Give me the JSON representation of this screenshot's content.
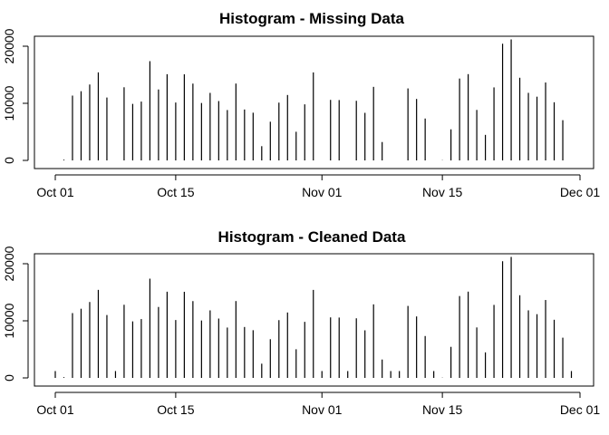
{
  "chart_data": [
    {
      "type": "bar",
      "title": "Histogram - Missing Data",
      "xlabel": "",
      "ylabel": "",
      "x_ticks": [
        "Oct 01",
        "Oct 15",
        "Nov 01",
        "Nov 15",
        "Dec 01"
      ],
      "y_ticks": [
        "0",
        "10000",
        "20000"
      ],
      "ylim": [
        0,
        21500
      ],
      "x": [
        "2012-10-02",
        "2012-10-03",
        "2012-10-04",
        "2012-10-05",
        "2012-10-06",
        "2012-10-07",
        "2012-10-09",
        "2012-10-10",
        "2012-10-11",
        "2012-10-12",
        "2012-10-13",
        "2012-10-14",
        "2012-10-15",
        "2012-10-16",
        "2012-10-17",
        "2012-10-18",
        "2012-10-19",
        "2012-10-20",
        "2012-10-21",
        "2012-10-22",
        "2012-10-23",
        "2012-10-24",
        "2012-10-25",
        "2012-10-26",
        "2012-10-27",
        "2012-10-28",
        "2012-10-29",
        "2012-10-30",
        "2012-10-31",
        "2012-11-02",
        "2012-11-03",
        "2012-11-05",
        "2012-11-06",
        "2012-11-07",
        "2012-11-08",
        "2012-11-11",
        "2012-11-12",
        "2012-11-13",
        "2012-11-15",
        "2012-11-16",
        "2012-11-17",
        "2012-11-18",
        "2012-11-19",
        "2012-11-20",
        "2012-11-21",
        "2012-11-22",
        "2012-11-23",
        "2012-11-24",
        "2012-11-25",
        "2012-11-26",
        "2012-11-27",
        "2012-11-28",
        "2012-11-29"
      ],
      "values": [
        126,
        11352,
        12116,
        13294,
        15420,
        11015,
        12811,
        9900,
        10304,
        17382,
        12426,
        15098,
        10139,
        15084,
        13452,
        10056,
        11829,
        10395,
        8821,
        13460,
        8918,
        8355,
        2492,
        6778,
        10119,
        11458,
        5018,
        9819,
        15414,
        10600,
        10571,
        10439,
        8334,
        12883,
        3219,
        12608,
        10765,
        7336,
        41,
        5441,
        14339,
        15110,
        8841,
        4472,
        12787,
        20427,
        21194,
        14478,
        11834,
        11162,
        13646,
        10183,
        7047
      ]
    },
    {
      "type": "bar",
      "title": "Histogram - Cleaned Data",
      "xlabel": "",
      "ylabel": "",
      "x_ticks": [
        "Oct 01",
        "Oct 15",
        "Nov 01",
        "Nov 15",
        "Dec 01"
      ],
      "y_ticks": [
        "0",
        "10000",
        "20000"
      ],
      "ylim": [
        0,
        21500
      ],
      "x": [
        "2012-10-01",
        "2012-10-02",
        "2012-10-03",
        "2012-10-04",
        "2012-10-05",
        "2012-10-06",
        "2012-10-07",
        "2012-10-08",
        "2012-10-09",
        "2012-10-10",
        "2012-10-11",
        "2012-10-12",
        "2012-10-13",
        "2012-10-14",
        "2012-10-15",
        "2012-10-16",
        "2012-10-17",
        "2012-10-18",
        "2012-10-19",
        "2012-10-20",
        "2012-10-21",
        "2012-10-22",
        "2012-10-23",
        "2012-10-24",
        "2012-10-25",
        "2012-10-26",
        "2012-10-27",
        "2012-10-28",
        "2012-10-29",
        "2012-10-30",
        "2012-10-31",
        "2012-11-01",
        "2012-11-02",
        "2012-11-03",
        "2012-11-04",
        "2012-11-05",
        "2012-11-06",
        "2012-11-07",
        "2012-11-08",
        "2012-11-09",
        "2012-11-10",
        "2012-11-11",
        "2012-11-12",
        "2012-11-13",
        "2012-11-14",
        "2012-11-15",
        "2012-11-16",
        "2012-11-17",
        "2012-11-18",
        "2012-11-19",
        "2012-11-20",
        "2012-11-21",
        "2012-11-22",
        "2012-11-23",
        "2012-11-24",
        "2012-11-25",
        "2012-11-26",
        "2012-11-27",
        "2012-11-28",
        "2012-11-29",
        "2012-11-30"
      ],
      "values": [
        1200,
        126,
        11352,
        12116,
        13294,
        15420,
        11015,
        1200,
        12811,
        9900,
        10304,
        17382,
        12426,
        15098,
        10139,
        15084,
        13452,
        10056,
        11829,
        10395,
        8821,
        13460,
        8918,
        8355,
        2492,
        6778,
        10119,
        11458,
        5018,
        9819,
        15414,
        1200,
        10600,
        10571,
        1200,
        10439,
        8334,
        12883,
        3219,
        1200,
        1200,
        12608,
        10765,
        7336,
        1200,
        41,
        5441,
        14339,
        15110,
        8841,
        4472,
        12787,
        20427,
        21194,
        14478,
        11834,
        11162,
        13646,
        10183,
        7047,
        1200
      ]
    }
  ]
}
